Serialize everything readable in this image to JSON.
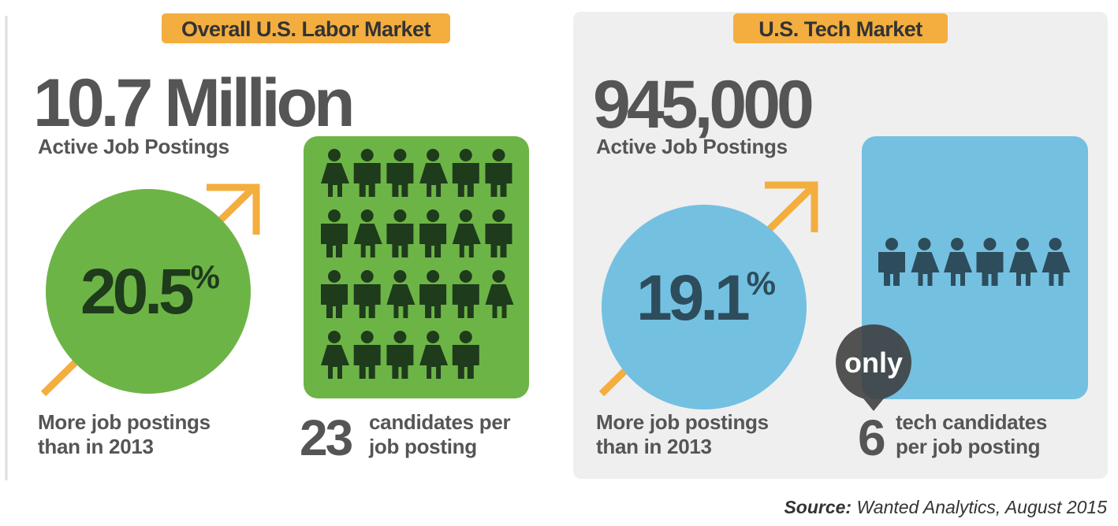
{
  "panels": [
    {
      "badge": "Overall U.S. Labor Market",
      "postings": "10.7 Million",
      "postings_label": "Active Job Postings",
      "growth": "20.5",
      "growth_unit": "%",
      "growth_label": [
        "More job postings",
        "than in 2013"
      ],
      "candidates": 23,
      "candidates_label": [
        "candidates per",
        "job posting"
      ]
    },
    {
      "badge": "U.S. Tech Market",
      "postings": "945,000",
      "postings_label": "Active Job Postings",
      "growth": "19.1",
      "growth_unit": "%",
      "growth_label": [
        "More job postings",
        "than in 2013"
      ],
      "only": "only",
      "candidates": 6,
      "candidates_label": [
        "tech candidates",
        "per job posting"
      ]
    }
  ],
  "source_label": "Source:",
  "source_text": "Wanted Analytics, August 2015"
}
